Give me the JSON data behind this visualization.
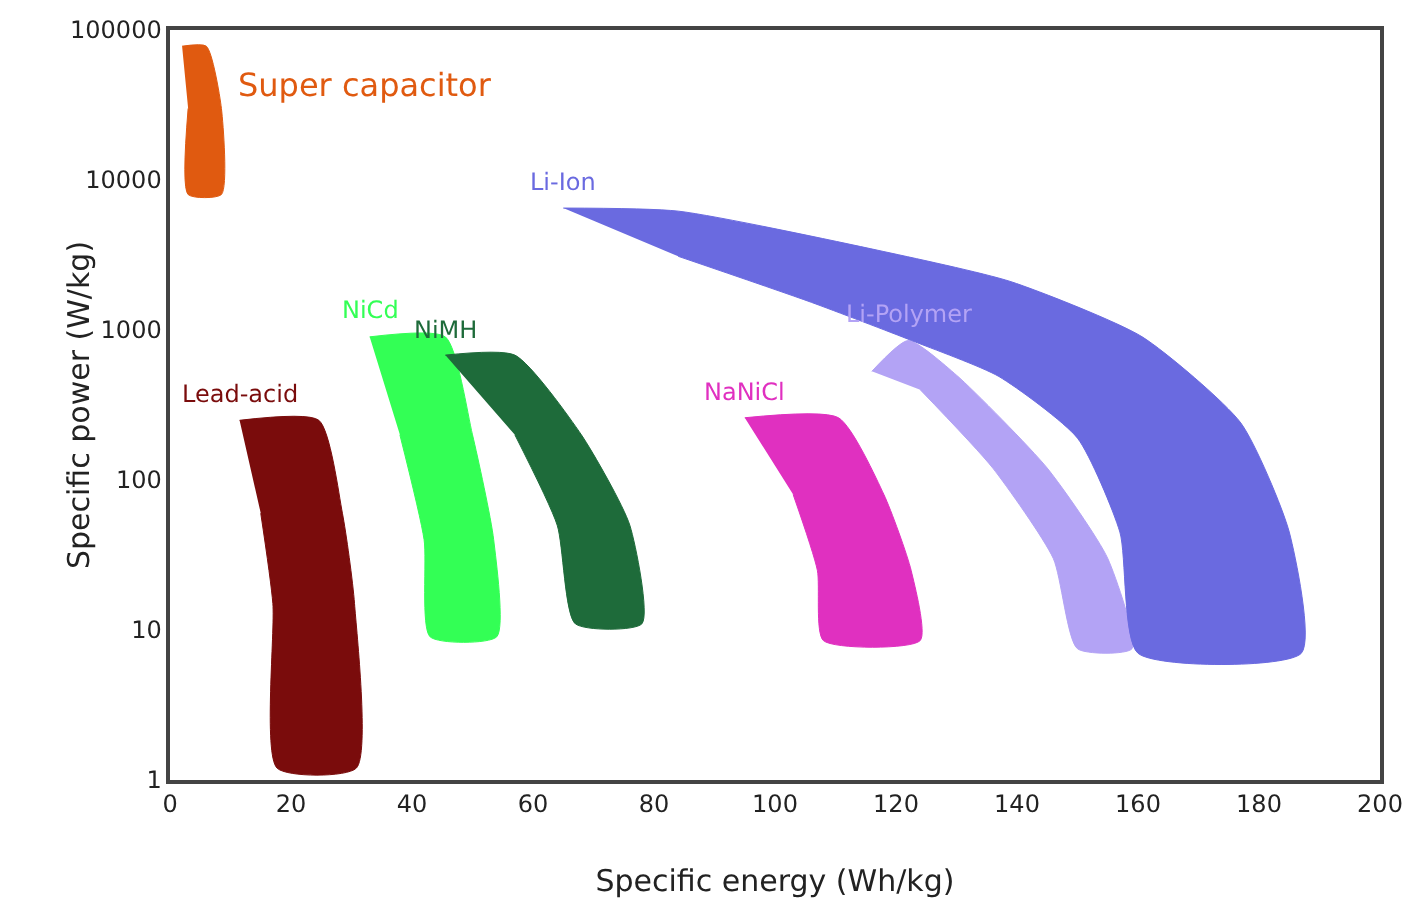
{
  "chart_data": {
    "type": "area",
    "xlabel": "Specific energy (Wh/kg)",
    "ylabel": "Specific power (W/kg)",
    "log": "y",
    "grid": false,
    "legend": false,
    "xlim": [
      0,
      200
    ],
    "xticks": [
      0,
      20,
      40,
      60,
      80,
      100,
      120,
      140,
      160,
      180,
      200
    ],
    "ylim": [
      1,
      100000
    ],
    "yticks": [
      1,
      10,
      100,
      1000,
      10000,
      100000
    ],
    "series": [
      {
        "name": "Super capacitor",
        "color": "#e05a10",
        "x": [
          2,
          6,
          8.5,
          8.5,
          3,
          3
        ],
        "values": [
          78000,
          78000,
          30000,
          8000,
          8000,
          30000
        ]
      },
      {
        "name": "Lead-acid",
        "color": "#7a0c0c",
        "x": [
          11.5,
          24.6,
          28.5,
          30.5,
          30.8,
          17.7,
          17,
          15
        ],
        "values": [
          250,
          250,
          60,
          15,
          1.2,
          1.2,
          15,
          60
        ]
      },
      {
        "name": "NiCd",
        "color": "#33ff55",
        "x": [
          33,
          45.5,
          50,
          53.5,
          54,
          43,
          42,
          38
        ],
        "values": [
          900,
          900,
          200,
          40,
          9,
          9,
          40,
          200
        ]
      },
      {
        "name": "NiMH",
        "color": "#1e6b3a",
        "x": [
          45.5,
          57,
          68,
          76,
          78,
          67,
          64,
          57
        ],
        "values": [
          680,
          680,
          200,
          50,
          11,
          11,
          50,
          200
        ]
      },
      {
        "name": "NaNiCl",
        "color": "#e030c0",
        "x": [
          95,
          110.5,
          118,
          122.5,
          124,
          108,
          107,
          103
        ],
        "values": [
          260,
          260,
          80,
          25,
          8.5,
          8.5,
          25,
          80
        ]
      },
      {
        "name": "Li-Polymer",
        "color": "#b3a3f5",
        "x": [
          116,
          122,
          130,
          145,
          155,
          159,
          150,
          146,
          136,
          124
        ],
        "values": [
          530,
          850,
          500,
          120,
          30,
          7.5,
          7.5,
          30,
          120,
          400
        ]
      },
      {
        "name": "Li-Ion",
        "color": "#6a6ae0",
        "x": [
          65,
          84,
          117,
          139,
          160.7,
          177,
          185,
          187,
          160,
          157,
          150,
          137,
          122.6,
          106,
          84
        ],
        "values": [
          6500,
          6200,
          3400,
          2100,
          900,
          240,
          45,
          7,
          7,
          45,
          190,
          490,
          850,
          1530,
          3100
        ]
      }
    ]
  }
}
